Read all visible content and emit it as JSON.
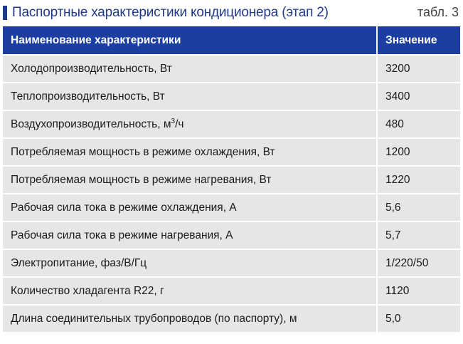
{
  "title": "Паспортные характеристики кондиционера (этап 2)",
  "table_number": "табл. 3",
  "table": {
    "headers": [
      "Наименование характеристики",
      "Значение"
    ],
    "rows": [
      {
        "name": "Холодопроизводительность, Вт",
        "value": "3200"
      },
      {
        "name": "Теплопроизводительность, Вт",
        "value": "3400"
      },
      {
        "name_prefix": "Воздухопроизводительность, м",
        "name_sup": "3",
        "name_suffix": "/ч",
        "value": "480"
      },
      {
        "name": "Потребляемая мощность в режиме охлаждения, Вт",
        "value": "1200"
      },
      {
        "name": "Потребляемая мощность в режиме нагревания, Вт",
        "value": "1220"
      },
      {
        "name": "Рабочая сила тока в режиме охлаждения, А",
        "value": "5,6"
      },
      {
        "name": "Рабочая сила тока в режиме нагревания, А",
        "value": "5,7"
      },
      {
        "name": "Электропитание, фаз/В/Гц",
        "value": "1/220/50"
      },
      {
        "name": "Количество хладагента R22, г",
        "value": "1120"
      },
      {
        "name": "Длина соединительных трубопроводов (по паспорту), м",
        "value": "5,0"
      }
    ]
  },
  "colors": {
    "accent": "#1c3ea3",
    "row_bg": "#e5e6e7",
    "title": "#1f3a8a"
  }
}
